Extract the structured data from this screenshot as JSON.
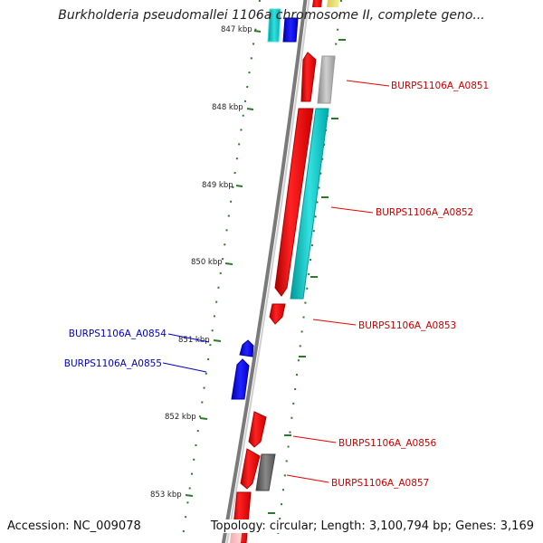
{
  "title": "Burkholderia pseudomallei 1106a chromosome II, complete geno...",
  "footer": {
    "accession": "Accession: NC_009078",
    "topology": "Topology: circular; Length: 3,100,794 bp; Genes: 3,169"
  },
  "colors": {
    "forward_cds": "#ee0000",
    "reverse_cds": "#0000dd",
    "backbone": "#888888",
    "tick": "#2a7a2a",
    "forward_label": "#cc0000",
    "reverse_label": "#0000cc"
  },
  "ruler": {
    "ticks": [
      "847 kbp",
      "848 kbp",
      "849 kbp",
      "850 kbp",
      "851 kbp",
      "852 kbp",
      "853 kbp"
    ]
  },
  "gene_labels": [
    {
      "text": "BURPS1106A_A0851",
      "strand": "forward"
    },
    {
      "text": "BURPS1106A_A0852",
      "strand": "forward"
    },
    {
      "text": "BURPS1106A_A0853",
      "strand": "forward"
    },
    {
      "text": "BURPS1106A_A0854",
      "strand": "reverse"
    },
    {
      "text": "BURPS1106A_A0855",
      "strand": "reverse"
    },
    {
      "text": "BURPS1106A_A0856",
      "strand": "forward"
    },
    {
      "text": "BURPS1106A_A0857",
      "strand": "forward"
    }
  ]
}
